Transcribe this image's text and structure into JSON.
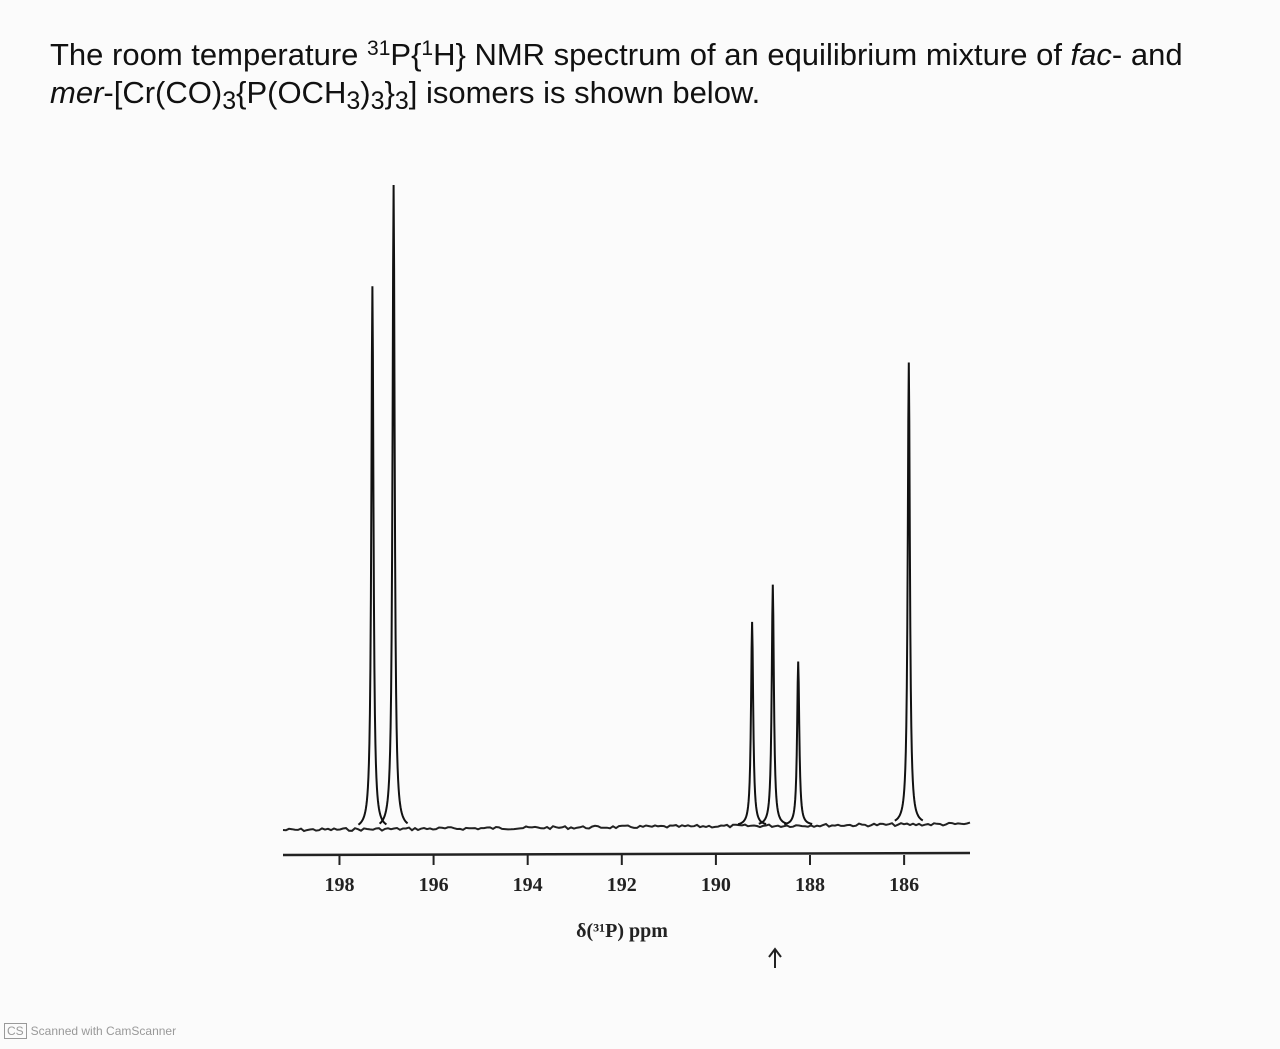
{
  "header": {
    "parts": [
      "The room temperature ",
      "31",
      "P{",
      "1",
      "H} NMR spectrum of an equilibrium mixture of ",
      "fac",
      "- and",
      "mer",
      "-[Cr(CO)",
      "3",
      "{P(OCH",
      "3",
      ")",
      "3",
      "}",
      "3",
      "] isomers is shown below."
    ]
  },
  "chart_data": {
    "type": "spectrum",
    "xlabel": "δ(³¹P) ppm",
    "x": [
      197.3,
      196.85,
      189.23,
      188.79,
      188.25,
      185.9
    ],
    "values": [
      543,
      644,
      204,
      241,
      164,
      462
    ],
    "color": "#111111",
    "xlim": [
      199.2,
      184.6
    ],
    "xticks": [
      198,
      196,
      194,
      192,
      190,
      188,
      186
    ],
    "ylim": [
      0,
      700
    ]
  },
  "footer": {
    "badge": "CS",
    "text": "Scanned with CamScanner"
  }
}
